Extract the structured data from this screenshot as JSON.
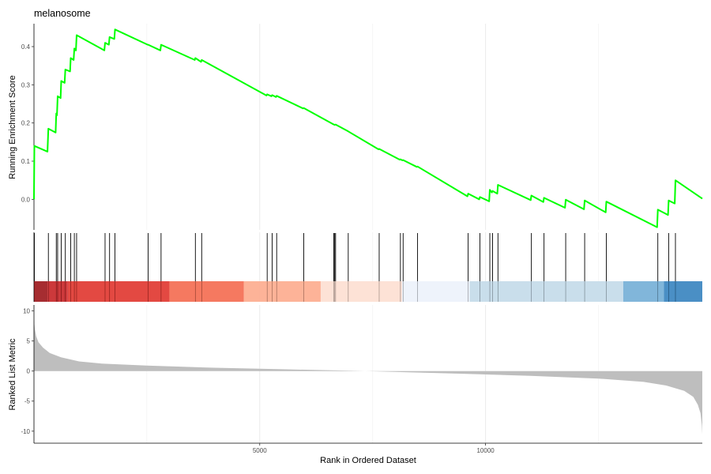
{
  "chart_data": {
    "type": "line",
    "title": "melanosome",
    "xlabel": "Rank in Ordered Dataset",
    "xlim": [
      1,
      14800
    ],
    "x_ticks": [
      5000,
      10000
    ],
    "x_tick_labels": [
      "5000",
      "10000"
    ],
    "grid": true,
    "legend": "none",
    "running_score": {
      "ylabel": "Running Enrichment Score",
      "ylim": [
        -0.08,
        0.46
      ],
      "y_ticks": [
        0.0,
        0.1,
        0.2,
        0.3,
        0.4
      ],
      "y_tick_labels": [
        "0.0",
        "0.1",
        "0.2",
        "0.3",
        "0.4"
      ],
      "color": "#00ff00",
      "points": [
        [
          1,
          0.0
        ],
        [
          10,
          0.14
        ],
        [
          300,
          0.125
        ],
        [
          320,
          0.185
        ],
        [
          480,
          0.175
        ],
        [
          495,
          0.225
        ],
        [
          510,
          0.22
        ],
        [
          525,
          0.27
        ],
        [
          590,
          0.265
        ],
        [
          605,
          0.31
        ],
        [
          680,
          0.305
        ],
        [
          695,
          0.34
        ],
        [
          800,
          0.335
        ],
        [
          815,
          0.37
        ],
        [
          880,
          0.365
        ],
        [
          895,
          0.395
        ],
        [
          930,
          0.39
        ],
        [
          945,
          0.43
        ],
        [
          1560,
          0.39
        ],
        [
          1575,
          0.41
        ],
        [
          1660,
          0.405
        ],
        [
          1675,
          0.425
        ],
        [
          1780,
          0.42
        ],
        [
          1795,
          0.445
        ],
        [
          2520,
          0.405
        ],
        [
          2530,
          0.405
        ],
        [
          2800,
          0.39
        ],
        [
          2815,
          0.405
        ],
        [
          3560,
          0.365
        ],
        [
          3575,
          0.37
        ],
        [
          3700,
          0.36
        ],
        [
          3715,
          0.365
        ],
        [
          5150,
          0.272
        ],
        [
          5165,
          0.275
        ],
        [
          5260,
          0.27
        ],
        [
          5275,
          0.273
        ],
        [
          5360,
          0.268
        ],
        [
          5375,
          0.271
        ],
        [
          5960,
          0.238
        ],
        [
          5975,
          0.239
        ],
        [
          6640,
          0.196
        ],
        [
          6660,
          0.195
        ],
        [
          6680,
          0.196
        ],
        [
          6960,
          0.178
        ],
        [
          7630,
          0.131
        ],
        [
          7645,
          0.132
        ],
        [
          8100,
          0.104
        ],
        [
          8115,
          0.105
        ],
        [
          8160,
          0.102
        ],
        [
          8175,
          0.103
        ],
        [
          8480,
          0.085
        ],
        [
          8495,
          0.086
        ],
        [
          9600,
          0.008
        ],
        [
          9615,
          0.015
        ],
        [
          9860,
          0.0
        ],
        [
          9875,
          0.006
        ],
        [
          10080,
          -0.005
        ],
        [
          10095,
          0.025
        ],
        [
          10140,
          0.018
        ],
        [
          10155,
          0.022
        ],
        [
          10260,
          0.015
        ],
        [
          10275,
          0.038
        ],
        [
          11000,
          -0.002
        ],
        [
          11015,
          0.01
        ],
        [
          11280,
          -0.007
        ],
        [
          11295,
          0.004
        ],
        [
          11760,
          -0.022
        ],
        [
          11775,
          -0.001
        ],
        [
          12180,
          -0.026
        ],
        [
          12195,
          -0.003
        ],
        [
          12660,
          -0.034
        ],
        [
          12675,
          -0.006
        ],
        [
          13800,
          -0.073
        ],
        [
          13815,
          -0.027
        ],
        [
          14040,
          -0.041
        ],
        [
          14055,
          -0.003
        ],
        [
          14190,
          -0.011
        ],
        [
          14205,
          0.05
        ],
        [
          14800,
          0.002
        ]
      ]
    },
    "gene_hits": [
      10,
      320,
      495,
      525,
      605,
      695,
      815,
      895,
      945,
      1575,
      1675,
      1795,
      2530,
      2815,
      3575,
      3715,
      5165,
      5275,
      5375,
      5975,
      6640,
      6660,
      6680,
      6960,
      7645,
      8115,
      8175,
      8495,
      9615,
      9875,
      10095,
      10155,
      10275,
      11015,
      11295,
      11775,
      12195,
      12675,
      13815,
      14055,
      14205
    ],
    "heat_band": {
      "segments": [
        [
          1,
          300,
          "#9e1b1f"
        ],
        [
          300,
          750,
          "#c8282a"
        ],
        [
          750,
          3000,
          "#e13a32"
        ],
        [
          3000,
          4650,
          "#f46e53"
        ],
        [
          4650,
          6350,
          "#fdac8f"
        ],
        [
          6350,
          8150,
          "#fde0d3"
        ],
        [
          8150,
          9650,
          "#edf2fb"
        ],
        [
          9650,
          13050,
          "#c4dbe9"
        ],
        [
          13050,
          13950,
          "#76b0d7"
        ],
        [
          13950,
          14800,
          "#3b86c0"
        ]
      ]
    },
    "ranked_metric": {
      "ylabel": "Ranked List Metric",
      "ylim": [
        -12,
        11
      ],
      "y_ticks": [
        -10,
        -5,
        0,
        5,
        10
      ],
      "y_tick_labels": [
        "-10",
        "-5",
        "0",
        "5",
        "10"
      ],
      "fill_color": "#bebebe",
      "points": [
        [
          1,
          8.5
        ],
        [
          20,
          7.0
        ],
        [
          50,
          5.8
        ],
        [
          100,
          4.8
        ],
        [
          200,
          3.9
        ],
        [
          350,
          3.0
        ],
        [
          600,
          2.3
        ],
        [
          1000,
          1.6
        ],
        [
          1500,
          1.25
        ],
        [
          2500,
          0.9
        ],
        [
          4000,
          0.55
        ],
        [
          5500,
          0.3
        ],
        [
          7000,
          0.05
        ],
        [
          8000,
          -0.15
        ],
        [
          9500,
          -0.45
        ],
        [
          11000,
          -0.8
        ],
        [
          12500,
          -1.25
        ],
        [
          13500,
          -1.8
        ],
        [
          14000,
          -2.4
        ],
        [
          14400,
          -3.3
        ],
        [
          14600,
          -4.3
        ],
        [
          14700,
          -5.6
        ],
        [
          14760,
          -7.0
        ],
        [
          14790,
          -9.0
        ],
        [
          14800,
          -10.5
        ]
      ]
    }
  }
}
